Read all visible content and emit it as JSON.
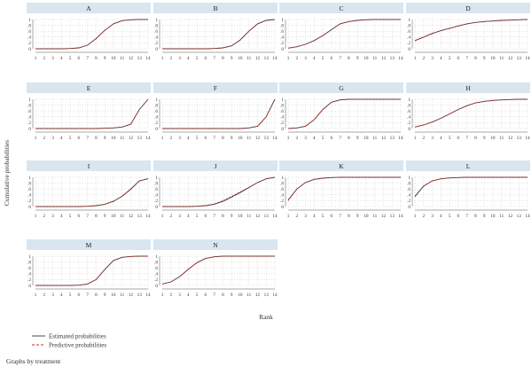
{
  "figure": {
    "ylabel": "Cumulative probabilities",
    "xlabel": "Rank",
    "note": "Graphs by treatment",
    "legend": [
      {
        "label": "Estimated probabilities",
        "color": "#333333",
        "dash": "solid"
      },
      {
        "label": "Predictive probabilities",
        "color": "#cc2a2a",
        "dash": "dashed"
      }
    ],
    "header_color": "#d9e6f0",
    "grid": "dotted",
    "x_ticks": [
      "1",
      "2",
      "3",
      "4",
      "5",
      "6",
      "7",
      "8",
      "9",
      "10",
      "11",
      "12",
      "13",
      "14"
    ],
    "y_ticks": [
      "0",
      ".2",
      ".4",
      ".6",
      ".8",
      "1"
    ]
  },
  "chart_data": [
    {
      "type": "line",
      "title": "A",
      "x": [
        1,
        2,
        3,
        4,
        5,
        6,
        7,
        8,
        9,
        10,
        11,
        12,
        13,
        14
      ],
      "ylim": [
        0,
        1
      ],
      "series": [
        {
          "name": "Estimated probabilities",
          "values": [
            0.0,
            0.0,
            0.0,
            0.0,
            0.01,
            0.03,
            0.12,
            0.35,
            0.63,
            0.85,
            0.96,
            0.99,
            1.0,
            1.0
          ]
        },
        {
          "name": "Predictive probabilities",
          "values": [
            0.0,
            0.0,
            0.0,
            0.0,
            0.01,
            0.03,
            0.12,
            0.35,
            0.63,
            0.85,
            0.96,
            0.99,
            1.0,
            1.0
          ]
        }
      ]
    },
    {
      "type": "line",
      "title": "B",
      "x": [
        1,
        2,
        3,
        4,
        5,
        6,
        7,
        8,
        9,
        10,
        11,
        12,
        13,
        14
      ],
      "ylim": [
        0,
        1
      ],
      "series": [
        {
          "name": "Estimated probabilities",
          "values": [
            0.0,
            0.0,
            0.0,
            0.0,
            0.0,
            0.0,
            0.01,
            0.03,
            0.1,
            0.3,
            0.6,
            0.85,
            0.97,
            1.0
          ]
        },
        {
          "name": "Predictive probabilities",
          "values": [
            0.0,
            0.0,
            0.0,
            0.0,
            0.0,
            0.0,
            0.01,
            0.03,
            0.1,
            0.3,
            0.6,
            0.85,
            0.97,
            1.0
          ]
        }
      ]
    },
    {
      "type": "line",
      "title": "C",
      "x": [
        1,
        2,
        3,
        4,
        5,
        6,
        7,
        8,
        9,
        10,
        11,
        12,
        13,
        14
      ],
      "ylim": [
        0,
        1
      ],
      "series": [
        {
          "name": "Estimated probabilities",
          "values": [
            0.02,
            0.07,
            0.15,
            0.28,
            0.45,
            0.65,
            0.85,
            0.93,
            0.97,
            0.99,
            1.0,
            1.0,
            1.0,
            1.0
          ]
        },
        {
          "name": "Predictive probabilities",
          "values": [
            0.02,
            0.07,
            0.15,
            0.28,
            0.45,
            0.65,
            0.85,
            0.93,
            0.97,
            0.99,
            1.0,
            1.0,
            1.0,
            1.0
          ]
        }
      ]
    },
    {
      "type": "line",
      "title": "D",
      "x": [
        1,
        2,
        3,
        4,
        5,
        6,
        7,
        8,
        9,
        10,
        11,
        12,
        13,
        14
      ],
      "ylim": [
        0,
        1
      ],
      "series": [
        {
          "name": "Estimated probabilities",
          "values": [
            0.28,
            0.4,
            0.52,
            0.62,
            0.7,
            0.78,
            0.85,
            0.9,
            0.93,
            0.95,
            0.97,
            0.98,
            0.99,
            1.0
          ]
        },
        {
          "name": "Predictive probabilities",
          "values": [
            0.27,
            0.4,
            0.53,
            0.61,
            0.7,
            0.78,
            0.85,
            0.9,
            0.93,
            0.95,
            0.97,
            0.98,
            0.99,
            1.0
          ]
        }
      ]
    },
    {
      "type": "line",
      "title": "E",
      "x": [
        1,
        2,
        3,
        4,
        5,
        6,
        7,
        8,
        9,
        10,
        11,
        12,
        13,
        14
      ],
      "ylim": [
        0,
        1
      ],
      "series": [
        {
          "name": "Estimated probabilities",
          "values": [
            0.0,
            0.0,
            0.0,
            0.0,
            0.0,
            0.0,
            0.0,
            0.0,
            0.01,
            0.02,
            0.05,
            0.15,
            0.65,
            1.0
          ]
        },
        {
          "name": "Predictive probabilities",
          "values": [
            0.0,
            0.0,
            0.0,
            0.0,
            0.0,
            0.0,
            0.0,
            0.0,
            0.01,
            0.02,
            0.05,
            0.15,
            0.65,
            1.0
          ]
        }
      ]
    },
    {
      "type": "line",
      "title": "F",
      "x": [
        1,
        2,
        3,
        4,
        5,
        6,
        7,
        8,
        9,
        10,
        11,
        12,
        13,
        14
      ],
      "ylim": [
        0,
        1
      ],
      "series": [
        {
          "name": "Estimated probabilities",
          "values": [
            0.0,
            0.0,
            0.0,
            0.0,
            0.0,
            0.0,
            0.0,
            0.0,
            0.0,
            0.0,
            0.02,
            0.08,
            0.4,
            1.0
          ]
        },
        {
          "name": "Predictive probabilities",
          "values": [
            0.0,
            0.0,
            0.0,
            0.0,
            0.0,
            0.0,
            0.0,
            0.0,
            0.0,
            0.0,
            0.02,
            0.08,
            0.4,
            1.0
          ]
        }
      ]
    },
    {
      "type": "line",
      "title": "G",
      "x": [
        1,
        2,
        3,
        4,
        5,
        6,
        7,
        8,
        9,
        10,
        11,
        12,
        13,
        14
      ],
      "ylim": [
        0,
        1
      ],
      "series": [
        {
          "name": "Estimated probabilities",
          "values": [
            0.0,
            0.02,
            0.08,
            0.3,
            0.65,
            0.9,
            0.98,
            1.0,
            1.0,
            1.0,
            1.0,
            1.0,
            1.0,
            1.0
          ]
        },
        {
          "name": "Predictive probabilities",
          "values": [
            0.0,
            0.02,
            0.08,
            0.3,
            0.65,
            0.9,
            0.98,
            1.0,
            1.0,
            1.0,
            1.0,
            1.0,
            1.0,
            1.0
          ]
        }
      ]
    },
    {
      "type": "line",
      "title": "H",
      "x": [
        1,
        2,
        3,
        4,
        5,
        6,
        7,
        8,
        9,
        10,
        11,
        12,
        13,
        14
      ],
      "ylim": [
        0,
        1
      ],
      "series": [
        {
          "name": "Estimated probabilities",
          "values": [
            0.05,
            0.12,
            0.22,
            0.35,
            0.5,
            0.65,
            0.78,
            0.88,
            0.93,
            0.96,
            0.98,
            0.99,
            1.0,
            1.0
          ]
        },
        {
          "name": "Predictive probabilities",
          "values": [
            0.05,
            0.12,
            0.22,
            0.35,
            0.5,
            0.65,
            0.78,
            0.88,
            0.93,
            0.96,
            0.98,
            0.99,
            1.0,
            1.0
          ]
        }
      ]
    },
    {
      "type": "line",
      "title": "I",
      "x": [
        1,
        2,
        3,
        4,
        5,
        6,
        7,
        8,
        9,
        10,
        11,
        12,
        13,
        14
      ],
      "ylim": [
        0,
        1
      ],
      "series": [
        {
          "name": "Estimated probabilities",
          "values": [
            0.0,
            0.0,
            0.0,
            0.0,
            0.0,
            0.0,
            0.01,
            0.03,
            0.08,
            0.18,
            0.35,
            0.6,
            0.88,
            0.95
          ]
        },
        {
          "name": "Predictive probabilities",
          "values": [
            0.0,
            0.0,
            0.0,
            0.0,
            0.0,
            0.0,
            0.01,
            0.03,
            0.08,
            0.17,
            0.35,
            0.58,
            0.87,
            0.96
          ]
        }
      ]
    },
    {
      "type": "line",
      "title": "J",
      "x": [
        1,
        2,
        3,
        4,
        5,
        6,
        7,
        8,
        9,
        10,
        11,
        12,
        13,
        14
      ],
      "ylim": [
        0,
        1
      ],
      "series": [
        {
          "name": "Estimated probabilities",
          "values": [
            0.0,
            0.0,
            0.0,
            0.0,
            0.01,
            0.03,
            0.08,
            0.18,
            0.32,
            0.48,
            0.65,
            0.82,
            0.95,
            1.0
          ]
        },
        {
          "name": "Predictive probabilities",
          "values": [
            0.0,
            0.0,
            0.0,
            0.0,
            0.01,
            0.03,
            0.09,
            0.2,
            0.35,
            0.5,
            0.66,
            0.82,
            0.95,
            1.0
          ]
        }
      ]
    },
    {
      "type": "line",
      "title": "K",
      "x": [
        1,
        2,
        3,
        4,
        5,
        6,
        7,
        8,
        9,
        10,
        11,
        12,
        13,
        14
      ],
      "ylim": [
        0,
        1
      ],
      "series": [
        {
          "name": "Estimated probabilities",
          "values": [
            0.22,
            0.6,
            0.82,
            0.93,
            0.97,
            0.99,
            1.0,
            1.0,
            1.0,
            1.0,
            1.0,
            1.0,
            1.0,
            1.0
          ]
        },
        {
          "name": "Predictive probabilities",
          "values": [
            0.2,
            0.6,
            0.82,
            0.93,
            0.97,
            0.99,
            1.0,
            1.0,
            1.0,
            1.0,
            1.0,
            1.0,
            1.0,
            1.0
          ]
        }
      ]
    },
    {
      "type": "line",
      "title": "L",
      "x": [
        1,
        2,
        3,
        4,
        5,
        6,
        7,
        8,
        9,
        10,
        11,
        12,
        13,
        14
      ],
      "ylim": [
        0,
        1
      ],
      "series": [
        {
          "name": "Estimated probabilities",
          "values": [
            0.35,
            0.7,
            0.88,
            0.95,
            0.98,
            0.99,
            1.0,
            1.0,
            1.0,
            1.0,
            1.0,
            1.0,
            1.0,
            1.0
          ]
        },
        {
          "name": "Predictive probabilities",
          "values": [
            0.33,
            0.7,
            0.88,
            0.95,
            0.98,
            0.99,
            1.0,
            1.0,
            1.0,
            1.0,
            1.0,
            1.0,
            1.0,
            1.0
          ]
        }
      ]
    },
    {
      "type": "line",
      "title": "M",
      "x": [
        1,
        2,
        3,
        4,
        5,
        6,
        7,
        8,
        9,
        10,
        11,
        12,
        13,
        14
      ],
      "ylim": [
        0,
        1
      ],
      "series": [
        {
          "name": "Estimated probabilities",
          "values": [
            0.0,
            0.0,
            0.0,
            0.0,
            0.0,
            0.01,
            0.05,
            0.2,
            0.55,
            0.85,
            0.96,
            0.99,
            1.0,
            1.0
          ]
        },
        {
          "name": "Predictive probabilities",
          "values": [
            0.0,
            0.0,
            0.0,
            0.0,
            0.0,
            0.01,
            0.05,
            0.2,
            0.55,
            0.85,
            0.96,
            0.99,
            1.0,
            1.0
          ]
        }
      ]
    },
    {
      "type": "line",
      "title": "N",
      "x": [
        1,
        2,
        3,
        4,
        5,
        6,
        7,
        8,
        9,
        10,
        11,
        12,
        13,
        14
      ],
      "ylim": [
        0,
        1
      ],
      "series": [
        {
          "name": "Estimated probabilities",
          "values": [
            0.05,
            0.12,
            0.3,
            0.55,
            0.78,
            0.92,
            0.98,
            1.0,
            1.0,
            1.0,
            1.0,
            1.0,
            1.0,
            1.0
          ]
        },
        {
          "name": "Predictive probabilities",
          "values": [
            0.05,
            0.12,
            0.3,
            0.55,
            0.78,
            0.92,
            0.98,
            1.0,
            1.0,
            1.0,
            1.0,
            1.0,
            1.0,
            1.0
          ]
        }
      ]
    }
  ]
}
